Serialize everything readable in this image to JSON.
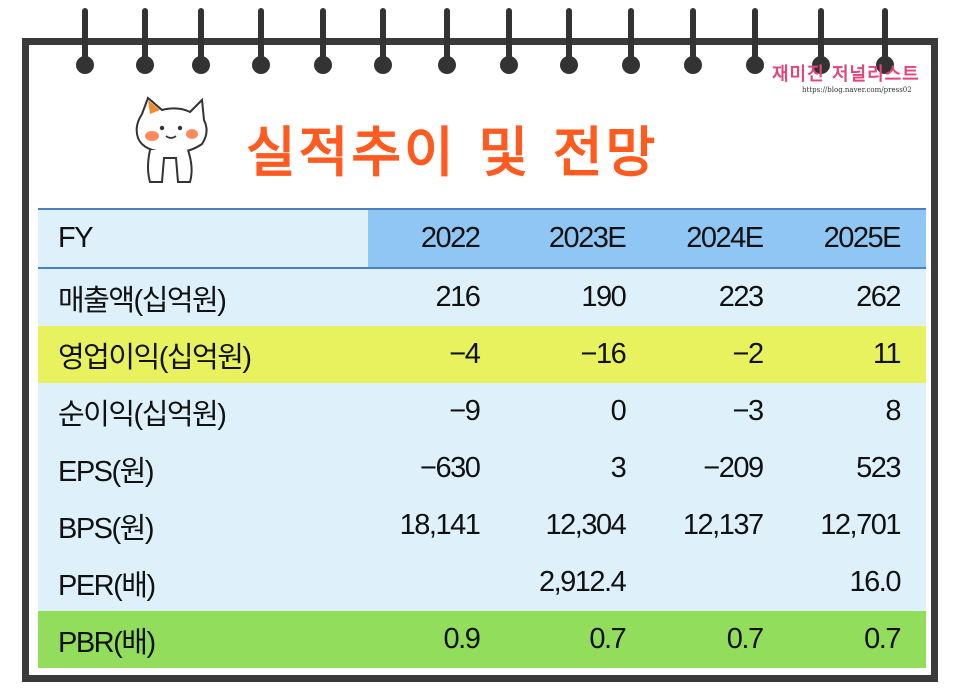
{
  "logo": {
    "name": "재미진 저널리스트",
    "url": "https://blog.naver.com/press02"
  },
  "title": "실적추이 및 전망",
  "table": {
    "header": {
      "label": "FY",
      "years": [
        "2022",
        "2023E",
        "2024E",
        "2025E"
      ]
    },
    "rows": [
      {
        "label": "매출액(십억원)",
        "values": [
          "216",
          "190",
          "223",
          "262"
        ],
        "highlight": "none"
      },
      {
        "label": "영업이익(십억원)",
        "values": [
          "−4",
          "−16",
          "−2",
          "11"
        ],
        "highlight": "#e7f25e"
      },
      {
        "label": "순이익(십억원)",
        "values": [
          "−9",
          "0",
          "−3",
          "8"
        ],
        "highlight": "none"
      },
      {
        "label": "EPS(원)",
        "values": [
          "−630",
          "3",
          "−209",
          "523"
        ],
        "highlight": "none"
      },
      {
        "label": "BPS(원)",
        "values": [
          "18,141",
          "12,304",
          "12,137",
          "12,701"
        ],
        "highlight": "none"
      },
      {
        "label": "PER(배)",
        "values": [
          "",
          "2,912.4",
          "",
          "16.0"
        ],
        "highlight": "none"
      },
      {
        "label": "PBR(배)",
        "values": [
          "0.9",
          "0.7",
          "0.7",
          "0.7"
        ],
        "highlight": "#93dd5d"
      }
    ]
  },
  "colors": {
    "title": "#ff5a1f",
    "header_fill": "#8fc6f4",
    "table_bg": "#def1fb",
    "logo": "#e2477c"
  }
}
